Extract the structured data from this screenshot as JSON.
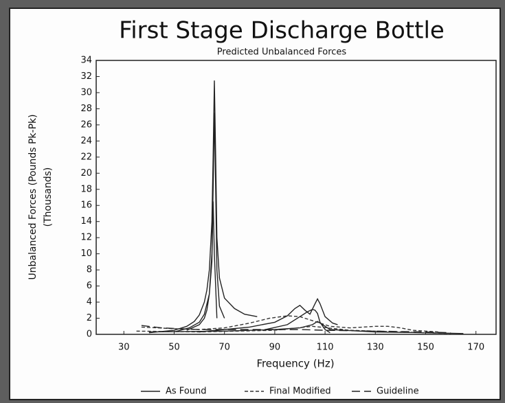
{
  "chart_data": {
    "type": "line",
    "title": "First Stage Discharge Bottle",
    "subtitle": "Predicted Unbalanced Forces",
    "xlabel": "Frequency (Hz)",
    "ylabel": [
      "Unbalanced Forces (Pounds Pk-Pk)",
      "(Thousands)"
    ],
    "xlim": [
      19,
      178
    ],
    "ylim": [
      0,
      34
    ],
    "xticks": [
      30,
      50,
      70,
      90,
      110,
      130,
      150,
      170
    ],
    "yticks": [
      0,
      2,
      4,
      6,
      8,
      10,
      12,
      14,
      16,
      18,
      20,
      22,
      24,
      26,
      28,
      30,
      32,
      34
    ],
    "grid": false,
    "legend": "bottom",
    "series": [
      {
        "name": "As Found",
        "color": "#222222",
        "style": "solid",
        "x": [
          40,
          50,
          55,
          58,
          60,
          62,
          63,
          64,
          65,
          65.5,
          66,
          66.5,
          67,
          68,
          70,
          74,
          78,
          83,
          null,
          50,
          56,
          60,
          62,
          64,
          65,
          65.5,
          66,
          66.5,
          67,
          68,
          70,
          null,
          55,
          60,
          62,
          63,
          64,
          65,
          65.5,
          66,
          67,
          null,
          60,
          70,
          80,
          90,
          95,
          98,
          100,
          102,
          104,
          106,
          107,
          108,
          110,
          113,
          115,
          null,
          85,
          95,
          100,
          103,
          105,
          106,
          107,
          108,
          110,
          112,
          null,
          40,
          70,
          90,
          100,
          105,
          107,
          109,
          112,
          130,
          150,
          165
        ],
        "values": [
          0.2,
          0.5,
          1,
          1.6,
          2.4,
          4,
          5.5,
          8,
          14,
          22,
          31.5,
          22,
          12,
          7,
          4.5,
          3.2,
          2.5,
          2.2,
          null,
          0.3,
          0.8,
          1.5,
          2.5,
          5,
          10,
          18,
          27.5,
          18,
          8,
          3.5,
          2,
          null,
          0.5,
          1.2,
          2,
          3,
          5,
          9,
          16.5,
          10,
          2,
          null,
          0.3,
          0.6,
          0.9,
          1.5,
          2.3,
          3.2,
          3.6,
          3,
          2.5,
          3.8,
          4.4,
          3.8,
          2.2,
          1.4,
          1.2,
          null,
          0.5,
          1.2,
          2.2,
          2.8,
          3.1,
          3,
          2.6,
          1.5,
          0.6,
          0.2,
          null,
          0.3,
          0.4,
          0.6,
          0.8,
          1.2,
          1.6,
          1.2,
          0.6,
          0.3,
          0.2,
          0.1
        ]
      },
      {
        "name": "Final Modified",
        "color": "#333333",
        "style": "dashed",
        "x": [
          37,
          50,
          60,
          70,
          80,
          88,
          95,
          100,
          104,
          108,
          112,
          120,
          130,
          135,
          140,
          145,
          155,
          null,
          35,
          60,
          90,
          105,
          120,
          150,
          160
        ],
        "values": [
          0.9,
          0.7,
          0.6,
          0.8,
          1.4,
          2,
          2.3,
          2.2,
          1.8,
          1.4,
          1,
          0.8,
          1,
          1,
          0.8,
          0.5,
          0.3,
          null,
          0.4,
          0.3,
          0.5,
          1,
          0.5,
          0.2,
          0.1
        ]
      },
      {
        "name": "Guideline",
        "color": "#222222",
        "style": "longdash",
        "x": [
          37,
          45,
          60,
          80,
          100,
          110,
          130,
          150,
          160
        ],
        "values": [
          1.1,
          0.8,
          0.6,
          0.6,
          0.6,
          0.5,
          0.4,
          0.3,
          0.2
        ]
      }
    ]
  }
}
